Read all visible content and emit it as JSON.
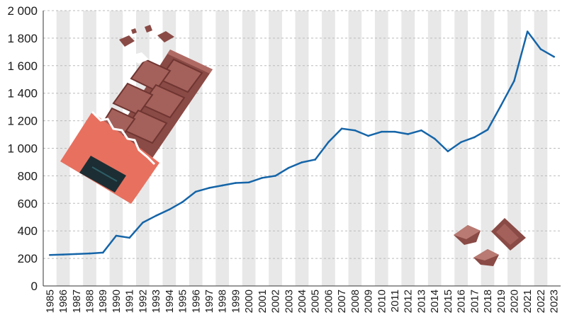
{
  "chart_data": {
    "type": "line",
    "title": "",
    "xlabel": "",
    "ylabel": "",
    "ylim": [
      0,
      2000
    ],
    "yticks": [
      0,
      200,
      400,
      600,
      800,
      1000,
      1200,
      1400,
      1600,
      1800,
      2000
    ],
    "ytick_labels": [
      "0",
      "200",
      "400",
      "600",
      "800",
      "1 000",
      "1 200",
      "1 400",
      "1 600",
      "1 800",
      "2 000"
    ],
    "grid": true,
    "x": [
      "1985",
      "1986",
      "1987",
      "1988",
      "1989",
      "1990",
      "1991",
      "1992",
      "1993",
      "1994",
      "1995",
      "1996",
      "1997",
      "1998",
      "1999",
      "2000",
      "2001",
      "2002",
      "2003",
      "2004",
      "2005",
      "2006",
      "2007",
      "2008",
      "2009",
      "2010",
      "2011",
      "2012",
      "2013",
      "2014",
      "2015",
      "2016",
      "2017",
      "2018",
      "2019",
      "2020",
      "2021",
      "2022",
      "2023"
    ],
    "series": [
      {
        "values": [
          225,
          228,
          232,
          236,
          242,
          365,
          350,
          460,
          510,
          555,
          610,
          685,
          712,
          730,
          748,
          752,
          785,
          800,
          858,
          898,
          918,
          1045,
          1143,
          1130,
          1090,
          1120,
          1120,
          1103,
          1130,
          1070,
          978,
          1045,
          1080,
          1135,
          1310,
          1490,
          1848,
          1720,
          1665
        ]
      }
    ],
    "colors": {
      "line": "#1565a8",
      "stripe": "#e8e8e8",
      "grid": "#bbbbbb",
      "axis": "#333333"
    },
    "decorations": [
      "chocolate-bar-illustration",
      "chocolate-pieces-illustration"
    ]
  }
}
